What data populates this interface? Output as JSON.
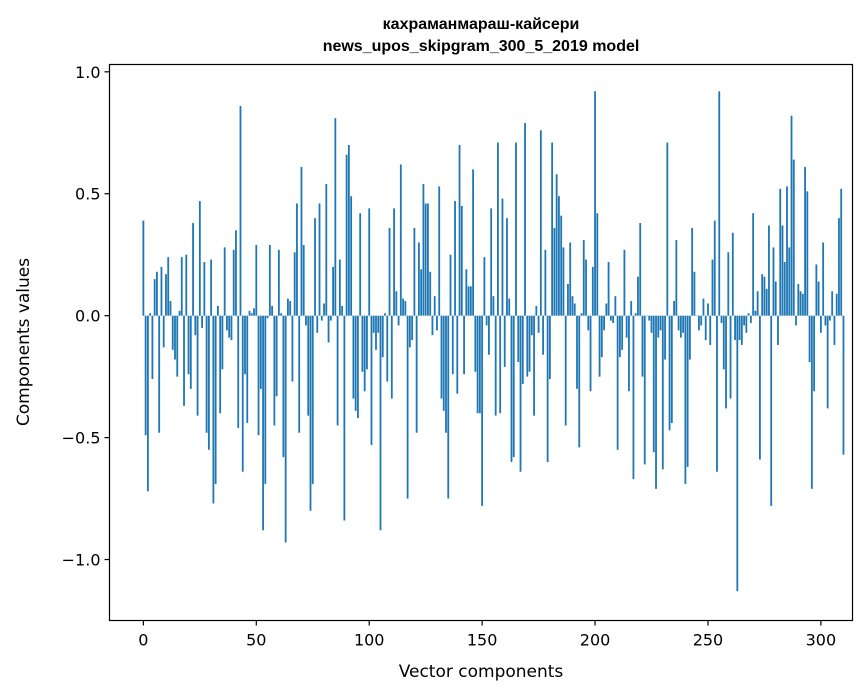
{
  "chart_data": {
    "type": "bar",
    "title_line1": "кахраманмараш-кайсери",
    "title_line2": "news_upos_skipgram_300_5_2019 model",
    "xlabel": "Vector components",
    "ylabel": "Components values",
    "xlim": [
      -15,
      314
    ],
    "ylim": [
      -1.25,
      1.03
    ],
    "xticks": [
      0,
      50,
      100,
      150,
      200,
      250,
      300
    ],
    "xtick_labels": [
      "0",
      "50",
      "100",
      "150",
      "200",
      "250",
      "300"
    ],
    "yticks": [
      -1.0,
      -0.5,
      0.0,
      0.5,
      1.0
    ],
    "ytick_labels": [
      "−1.0",
      "−0.5",
      "0.0",
      "0.5",
      "1.0"
    ],
    "bar_color": "#1f77b4",
    "grid": false,
    "legend": "none",
    "values": [
      0.39,
      -0.49,
      -0.72,
      0.01,
      -0.26,
      0.15,
      0.18,
      -0.48,
      0.2,
      -0.13,
      0.17,
      0.24,
      0.06,
      -0.14,
      -0.18,
      -0.25,
      0.02,
      0.24,
      -0.37,
      0.25,
      -0.24,
      -0.3,
      0.38,
      -0.08,
      -0.41,
      0.47,
      -0.05,
      0.22,
      -0.48,
      -0.55,
      0.23,
      -0.77,
      -0.69,
      0.04,
      -0.4,
      -0.22,
      0.28,
      -0.06,
      -0.09,
      -0.1,
      0.27,
      0.35,
      -0.46,
      0.86,
      -0.64,
      -0.24,
      -0.44,
      0.02,
      0.01,
      0.03,
      0.29,
      -0.49,
      -0.3,
      -0.88,
      -0.69,
      -0.01,
      0.29,
      0.04,
      -0.45,
      -0.33,
      0.27,
      0.01,
      -0.58,
      -0.93,
      0.07,
      0.06,
      -0.27,
      0.26,
      0.46,
      -0.48,
      0.61,
      0.29,
      -0.04,
      -0.41,
      -0.8,
      -0.69,
      0.4,
      -0.07,
      0.46,
      -0.02,
      0.05,
      0.54,
      -0.11,
      -0.02,
      0.2,
      0.81,
      -0.45,
      0.23,
      0.04,
      -0.84,
      0.66,
      0.7,
      0.49,
      -0.34,
      -0.39,
      -0.42,
      0.42,
      -0.23,
      -0.31,
      -0.22,
      0.44,
      -0.53,
      -0.07,
      -0.14,
      -0.07,
      -0.88,
      -0.17,
      0.01,
      -0.27,
      0.36,
      -0.34,
      0.44,
      0.1,
      -0.04,
      0.62,
      0.07,
      0.06,
      -0.75,
      -0.13,
      -0.1,
      0.36,
      -0.48,
      0.3,
      0.19,
      0.54,
      0.46,
      0.46,
      0.18,
      -0.08,
      0.08,
      -0.06,
      0.53,
      -0.34,
      -0.39,
      -0.48,
      -0.75,
      0.25,
      -0.24,
      0.47,
      -0.32,
      0.7,
      0.45,
      -0.24,
      0.19,
      0.12,
      0.12,
      0.6,
      -0.23,
      -0.4,
      -0.4,
      -0.78,
      0.24,
      -0.04,
      -0.16,
      0.44,
      0.08,
      -0.41,
      0.71,
      -0.4,
      0.48,
      -0.21,
      0.4,
      0.07,
      -0.6,
      -0.58,
      0.71,
      -0.19,
      -0.64,
      -0.28,
      0.79,
      -0.25,
      -0.23,
      -0.08,
      -0.41,
      0.04,
      -0.07,
      0.76,
      -0.16,
      0.27,
      -0.6,
      -0.26,
      0.71,
      0.36,
      0.58,
      0.49,
      0.41,
      0.28,
      -0.45,
      0.13,
      0.3,
      0.08,
      0.05,
      -0.3,
      -0.54,
      0.01,
      0.31,
      0.23,
      -0.06,
      -0.31,
      0.2,
      0.92,
      0.42,
      -0.25,
      -0.17,
      -0.06,
      0.05,
      0.22,
      -0.02,
      -0.03,
      0.08,
      -0.55,
      -0.17,
      -0.14,
      0.27,
      -0.09,
      -0.31,
      0.06,
      -0.67,
      0.01,
      0.16,
      0.38,
      -0.25,
      -0.61,
      0.0,
      -0.02,
      -0.07,
      -0.56,
      -0.71,
      -0.09,
      -0.06,
      -0.63,
      -0.18,
      0.71,
      -0.47,
      -0.44,
      0.06,
      0.31,
      -0.06,
      -0.09,
      -0.07,
      -0.69,
      -0.62,
      -0.18,
      0.36,
      0.18,
      0.0,
      -0.06,
      -0.04,
      0.07,
      -0.1,
      0.05,
      -0.12,
      0.23,
      0.39,
      -0.64,
      0.92,
      -0.03,
      -0.22,
      -0.38,
      0.26,
      -0.34,
      0.34,
      -0.1,
      -1.13,
      -0.1,
      -0.12,
      -0.04,
      -0.07,
      0.01,
      -0.03,
      0.42,
      0.02,
      0.1,
      -0.59,
      0.17,
      0.16,
      0.11,
      0.37,
      -0.78,
      0.28,
      0.14,
      -0.12,
      0.52,
      0.37,
      0.22,
      0.53,
      0.28,
      0.82,
      0.64,
      -0.04,
      0.13,
      0.1,
      0.09,
      0.61,
      0.51,
      -0.19,
      -0.71,
      -0.31,
      0.21,
      0.14,
      -0.07,
      0.3,
      -0.04,
      -0.38,
      -0.02,
      0.1,
      -0.12,
      0.09,
      0.4,
      0.52,
      -0.57
    ]
  }
}
